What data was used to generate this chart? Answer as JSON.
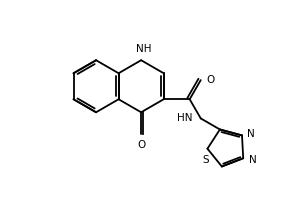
{
  "background": "#ffffff",
  "line_color": "#000000",
  "line_width": 1.3,
  "font_size": 7.5,
  "figsize": [
    3.0,
    2.0
  ],
  "dpi": 100,
  "xlim": [
    0,
    10
  ],
  "ylim": [
    0,
    6.67
  ]
}
